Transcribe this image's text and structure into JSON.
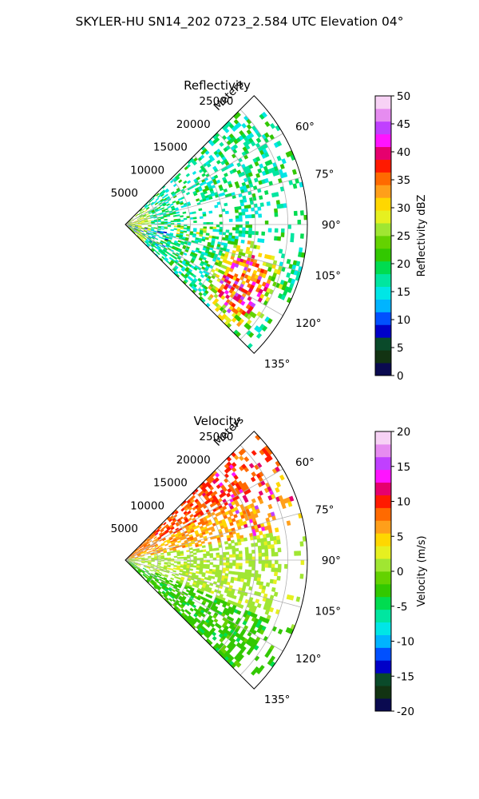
{
  "suptitle": "SKYLER-HU  SN14_202  0723_2.584 UTC Elevation 04°",
  "panels": [
    {
      "title": "Reflectivity",
      "r_axis_label": "Meters",
      "r_ticks": [
        "5000",
        "10000",
        "15000",
        "20000",
        "25000"
      ],
      "theta_ticks": [
        "60°",
        "75°",
        "90°",
        "105°",
        "120°",
        "135°"
      ],
      "colorbar": {
        "label": "Reflectivity dBZ",
        "ticks": [
          "0",
          "5",
          "10",
          "15",
          "20",
          "25",
          "30",
          "35",
          "40",
          "45",
          "50"
        ]
      }
    },
    {
      "title": "Velocity",
      "r_axis_label": "Meters",
      "r_ticks": [
        "5000",
        "10000",
        "15000",
        "20000",
        "25000"
      ],
      "theta_ticks": [
        "60°",
        "75°",
        "90°",
        "105°",
        "120°",
        "135°"
      ],
      "colorbar": {
        "label": "Velocity (m/s)",
        "ticks": [
          "-20",
          "-15",
          "-10",
          "-5",
          "0",
          "5",
          "10",
          "15",
          "20"
        ]
      }
    }
  ],
  "chart_data": [
    {
      "type": "heatmap",
      "subtype": "polar-sector (PPI)",
      "title": "Reflectivity",
      "theta_range_deg": [
        45,
        135
      ],
      "theta_ticks_deg": [
        60,
        75,
        90,
        105,
        120,
        135
      ],
      "r_range_m": [
        0,
        28000
      ],
      "r_ticks_m": [
        5000,
        10000,
        15000,
        20000,
        25000
      ],
      "value_range": [
        0,
        50
      ],
      "units": "dBZ",
      "colormap": [
        "#0a0a50",
        "#123312",
        "#0a4a2a",
        "#0000c8",
        "#0050ff",
        "#00b4ff",
        "#00e6e6",
        "#00e6a0",
        "#00dc50",
        "#32c800",
        "#64d200",
        "#a0e632",
        "#e6f020",
        "#ffd700",
        "#ff9f1a",
        "#ff6a00",
        "#ff1a00",
        "#e6006e",
        "#ff14ff",
        "#c040ff",
        "#e68cf0",
        "#f7d2f5"
      ],
      "notable_features": [
        {
          "description": "strongest echo core (magenta/red, ~35-45 dBZ)",
          "theta_deg": 117,
          "r_m": [
            17500,
            23500
          ]
        },
        {
          "description": "orange/yellow echo band (~25-30 dBZ)",
          "theta_deg": 96,
          "r_m": [
            5000,
            14000
          ]
        },
        {
          "description": "broad green echoes (~15-22 dBZ)",
          "theta_deg": [
            50,
            130
          ],
          "r_m": [
            0,
            27000
          ]
        }
      ]
    },
    {
      "type": "heatmap",
      "subtype": "polar-sector (PPI)",
      "title": "Velocity",
      "theta_range_deg": [
        45,
        135
      ],
      "theta_ticks_deg": [
        60,
        75,
        90,
        105,
        120,
        135
      ],
      "r_range_m": [
        0,
        28000
      ],
      "r_ticks_m": [
        5000,
        10000,
        15000,
        20000,
        25000
      ],
      "value_range": [
        -20,
        20
      ],
      "units": "m/s",
      "colormap": [
        "#0a0a50",
        "#123312",
        "#0a4a2a",
        "#0000c8",
        "#0050ff",
        "#00b4ff",
        "#00e6e6",
        "#00e6a0",
        "#00dc50",
        "#32c800",
        "#64d200",
        "#a0e632",
        "#e6f020",
        "#ffd700",
        "#ff9f1a",
        "#ff6a00",
        "#ff1a00",
        "#e6006e",
        "#ff14ff",
        "#c040ff",
        "#e68cf0",
        "#f7d2f5"
      ],
      "notable_features": [
        {
          "description": "receding flow, orange-red (~5-12 m/s)",
          "theta_deg": [
            48,
            80
          ],
          "r_m": [
            2000,
            27000
          ]
        },
        {
          "description": "near-zero, yellow (~0-2 m/s)",
          "theta_deg": [
            85,
            115
          ],
          "r_m": [
            3000,
            22000
          ]
        },
        {
          "description": "approaching flow, light green (~-3 to -6 m/s)",
          "theta_deg": [
            115,
            133
          ],
          "r_m": [
            0,
            24000
          ]
        }
      ]
    }
  ]
}
